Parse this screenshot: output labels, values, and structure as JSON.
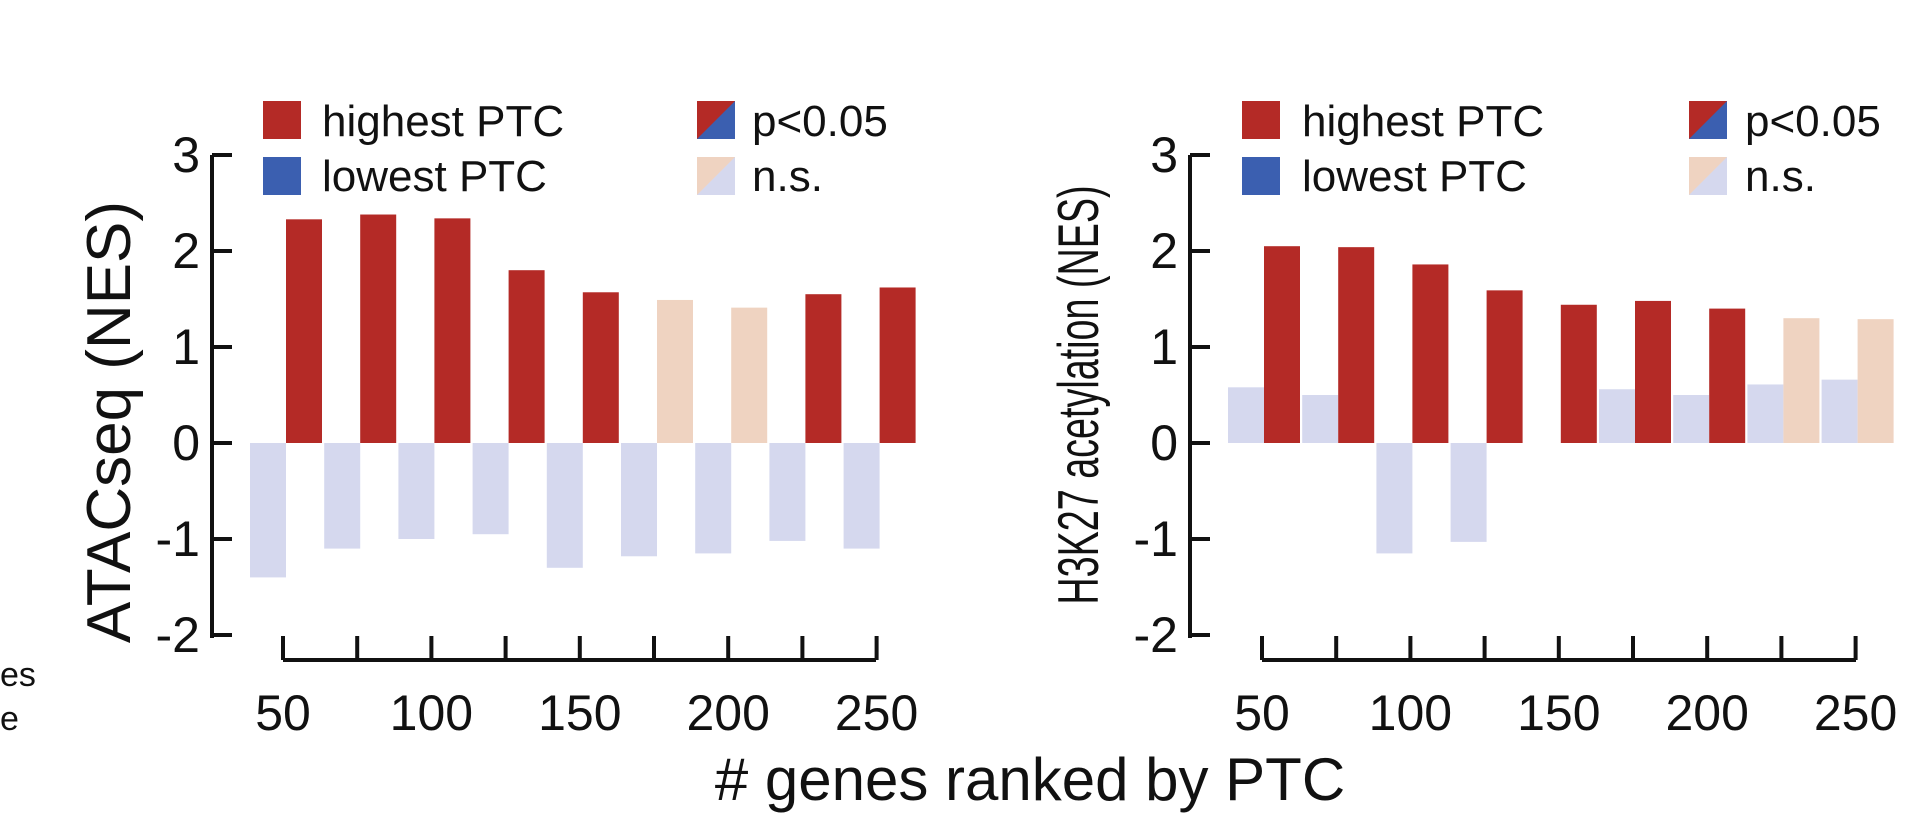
{
  "colors": {
    "highest_sig": "#b42a26",
    "lowest_sig": "#3b5fb0",
    "highest_ns": "#efd3c1",
    "lowest_ns": "#d5d8ee",
    "axis": "#111111"
  },
  "shared_xlabel": "# genes ranked by PTC",
  "cropped_left_text": [
    "es",
    "e"
  ],
  "legend": {
    "highest": "highest PTC",
    "lowest": "lowest PTC",
    "sig": "p<0.05",
    "ns": "n.s."
  },
  "chart_data": [
    {
      "type": "bar",
      "title": "",
      "ylabel": "ATACseq (NES)",
      "xlabel": "# genes ranked by PTC",
      "ylim": [
        -2,
        3
      ],
      "yticks": [
        3,
        2,
        1,
        0,
        -1,
        -2
      ],
      "ytick_labels": [
        "3",
        "2",
        "1",
        "0",
        "-1",
        "-2"
      ],
      "xtick_labels": [
        "50",
        "100",
        "150",
        "200",
        "250"
      ],
      "categories": [
        50,
        75,
        100,
        125,
        150,
        175,
        200,
        225,
        250
      ],
      "series": [
        {
          "name": "lowest PTC",
          "values": [
            -1.4,
            -1.1,
            -1.0,
            -0.95,
            -1.3,
            -1.18,
            -1.15,
            -1.02,
            -1.1
          ],
          "significant": [
            false,
            false,
            false,
            false,
            false,
            false,
            false,
            false,
            false
          ]
        },
        {
          "name": "highest PTC",
          "values": [
            2.33,
            2.38,
            2.34,
            1.8,
            1.57,
            1.49,
            1.41,
            1.55,
            1.62
          ],
          "significant": [
            true,
            true,
            true,
            true,
            true,
            false,
            false,
            true,
            true
          ]
        }
      ]
    },
    {
      "type": "bar",
      "title": "",
      "ylabel": "H3K27 acetylation (NES)",
      "xlabel": "# genes ranked by PTC",
      "ylim": [
        -2,
        3
      ],
      "yticks": [
        3,
        2,
        1,
        0,
        -1,
        -2
      ],
      "ytick_labels": [
        "3",
        "2",
        "1",
        "0",
        "-1",
        "-2"
      ],
      "xtick_labels": [
        "50",
        "100",
        "150",
        "200",
        "250"
      ],
      "categories": [
        50,
        75,
        100,
        125,
        150,
        175,
        200,
        225,
        250
      ],
      "series": [
        {
          "name": "lowest PTC",
          "values": [
            0.58,
            0.5,
            -1.15,
            -1.03,
            0.0,
            0.56,
            0.5,
            0.61,
            0.66
          ],
          "significant": [
            false,
            false,
            false,
            false,
            false,
            false,
            false,
            false,
            false
          ]
        },
        {
          "name": "highest PTC",
          "values": [
            2.05,
            2.04,
            1.86,
            1.59,
            1.44,
            1.48,
            1.4,
            1.3,
            1.29
          ],
          "significant": [
            true,
            true,
            true,
            true,
            true,
            true,
            true,
            false,
            false
          ]
        }
      ]
    }
  ]
}
